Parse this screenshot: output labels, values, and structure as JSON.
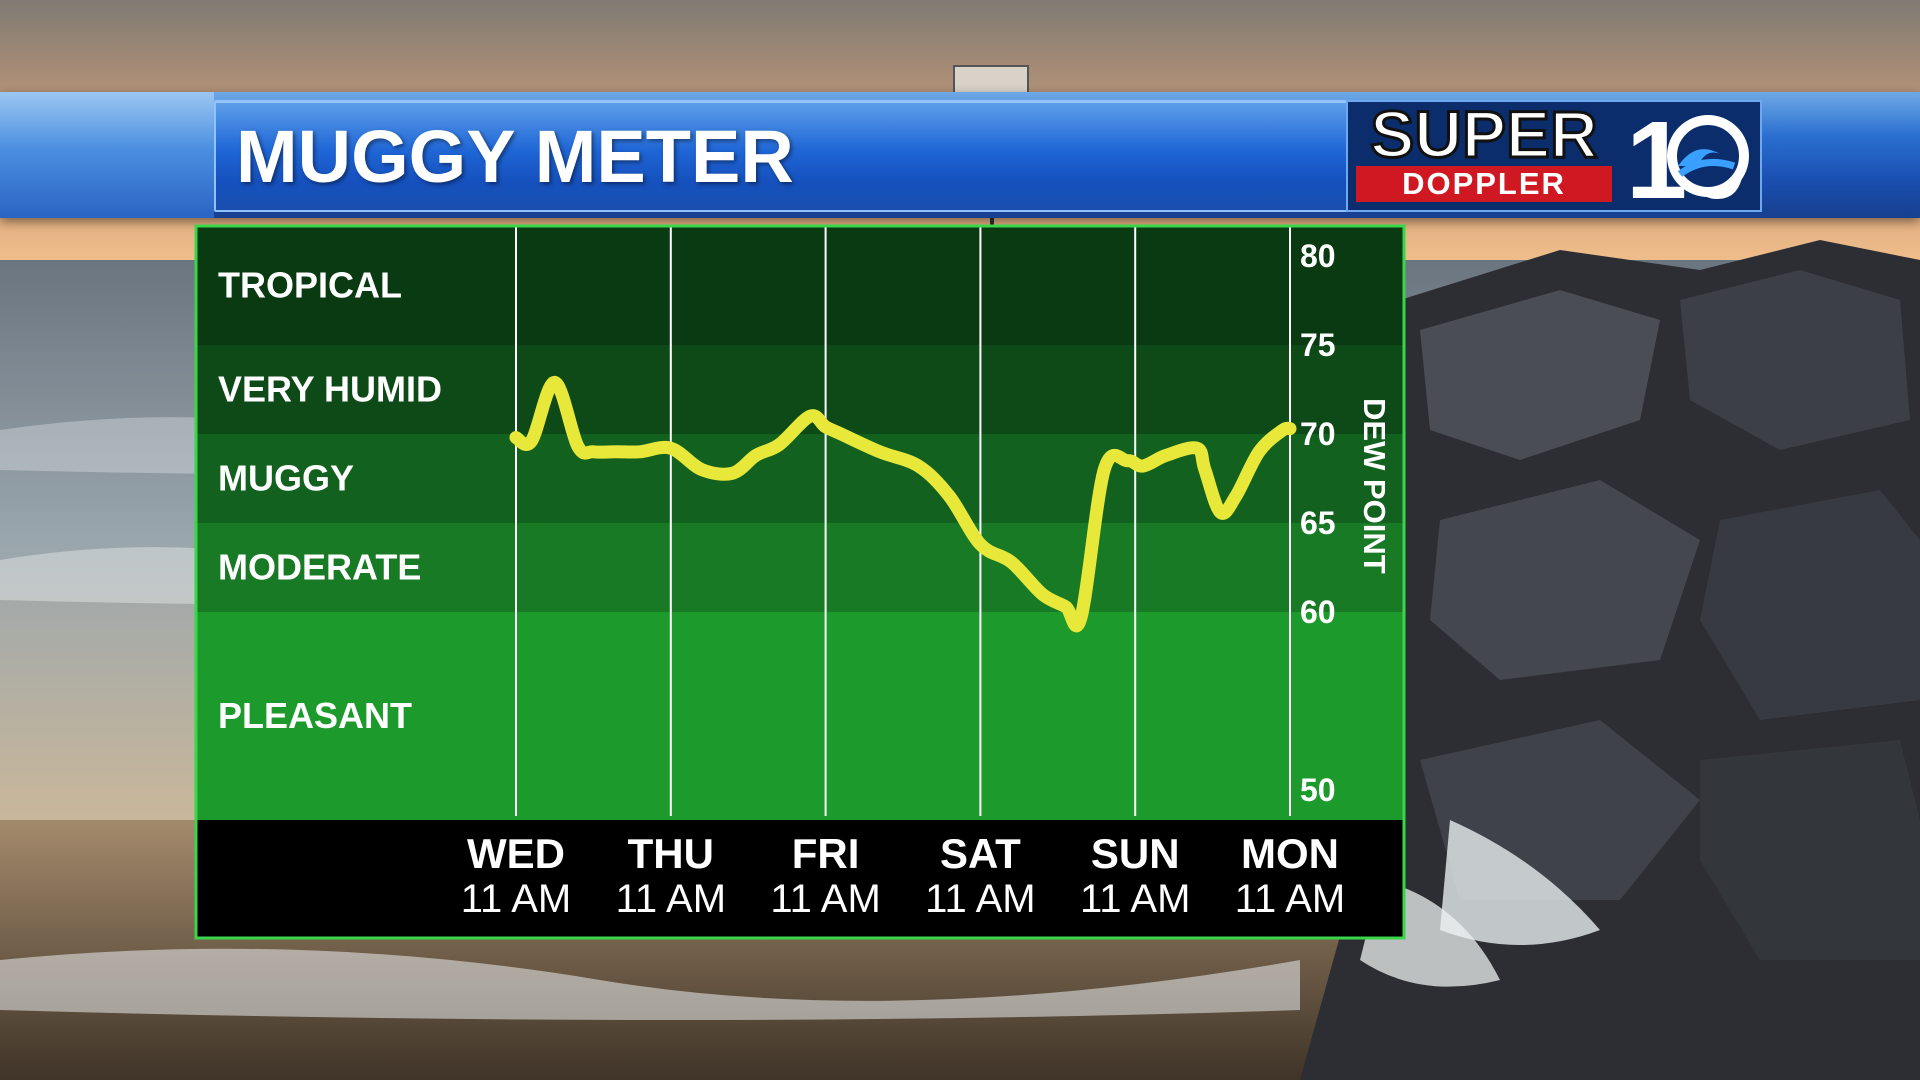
{
  "title": "MUGGY METER",
  "logo": {
    "line1": "SUPER",
    "line2": "DOPPLER",
    "number": "10"
  },
  "colors": {
    "line": "#e8e83a",
    "band_tropical": "#0a3a12",
    "band_very_humid": "#0e4a17",
    "band_muggy": "#13611e",
    "band_moderate": "#187a25",
    "band_pleasant": "#1c9a2c",
    "border": "#3ad64a"
  },
  "chart_data": {
    "type": "line",
    "title": "MUGGY METER",
    "ylabel": "DEW POINT",
    "xlabel": "",
    "ylim": [
      50,
      80
    ],
    "y_ticks": [
      "80",
      "75",
      "70",
      "65",
      "60",
      "50"
    ],
    "categories": [
      {
        "day": "WED",
        "time": "11 AM"
      },
      {
        "day": "THU",
        "time": "11 AM"
      },
      {
        "day": "FRI",
        "time": "11 AM"
      },
      {
        "day": "SAT",
        "time": "11 AM"
      },
      {
        "day": "SUN",
        "time": "11 AM"
      },
      {
        "day": "MON",
        "time": "11 AM"
      }
    ],
    "bands": [
      {
        "label": "TROPICAL",
        "from": 75,
        "to": 80
      },
      {
        "label": "VERY HUMID",
        "from": 70,
        "to": 75
      },
      {
        "label": "MUGGY",
        "from": 65,
        "to": 70
      },
      {
        "label": "MODERATE",
        "from": 60,
        "to": 65
      },
      {
        "label": "PLEASANT",
        "from": 50,
        "to": 60
      }
    ],
    "series": [
      {
        "x": [
          0,
          0.1,
          0.25,
          0.4,
          0.5,
          0.65,
          0.8,
          1.0,
          1.2,
          1.4,
          1.55,
          1.7,
          1.9,
          2.0,
          2.1,
          2.35,
          2.6,
          2.8,
          3.0,
          3.2,
          3.4,
          3.55,
          3.65,
          3.8,
          3.95,
          4.05,
          4.2,
          4.4,
          4.45,
          4.55,
          4.65,
          4.8,
          4.95,
          5.0
        ],
        "y": [
          69.8,
          69.6,
          72.9,
          69.3,
          69.0,
          69.0,
          69.0,
          69.2,
          68.0,
          67.8,
          68.8,
          69.4,
          71.0,
          70.4,
          70.0,
          69.0,
          68.2,
          66.5,
          63.8,
          62.8,
          61.0,
          60.3,
          59.7,
          68.0,
          68.5,
          68.2,
          68.8,
          69.2,
          68.0,
          65.6,
          66.5,
          69.0,
          70.2,
          70.3
        ]
      }
    ],
    "grid": "vertical lines at each day"
  }
}
